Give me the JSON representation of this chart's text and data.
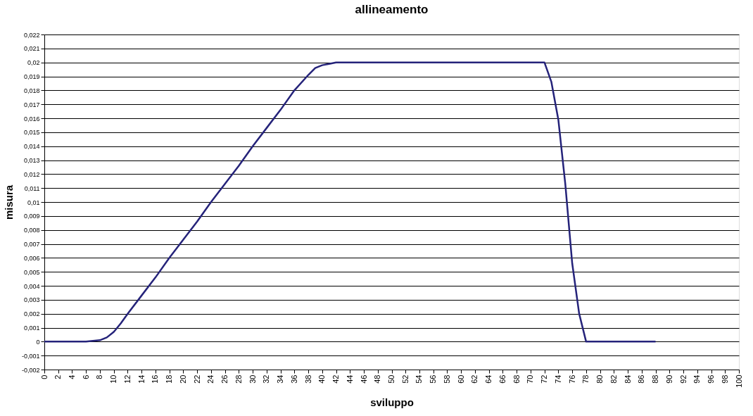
{
  "chart_data": {
    "type": "line",
    "title": "allineamento",
    "xlabel": "sviluppo",
    "ylabel": "misura",
    "x": [
      0,
      2,
      4,
      6,
      8,
      9,
      10,
      11,
      12,
      14,
      16,
      18,
      20,
      22,
      24,
      26,
      28,
      30,
      32,
      34,
      36,
      38,
      39,
      40,
      41,
      42,
      44,
      46,
      48,
      50,
      52,
      54,
      56,
      58,
      60,
      62,
      64,
      66,
      68,
      70,
      72,
      73,
      74,
      75,
      76,
      77,
      78,
      80,
      82,
      84,
      86,
      88
    ],
    "series": [
      {
        "color": "#25237a",
        "values": [
          0,
          0,
          0,
          0,
          0.0001,
          0.0003,
          0.0007,
          0.0013,
          0.002,
          0.0033,
          0.0046,
          0.006,
          0.0073,
          0.0086,
          0.01,
          0.0113,
          0.0126,
          0.014,
          0.0153,
          0.0166,
          0.018,
          0.0191,
          0.0196,
          0.0198,
          0.0199,
          0.02,
          0.02,
          0.02,
          0.02,
          0.02,
          0.02,
          0.02,
          0.02,
          0.02,
          0.02,
          0.02,
          0.02,
          0.02,
          0.02,
          0.02,
          0.02,
          0.0186,
          0.0159,
          0.0113,
          0.0056,
          0.002,
          0,
          0,
          0,
          0,
          0,
          0
        ]
      }
    ],
    "xlim": [
      0,
      100
    ],
    "xticks": [
      0,
      2,
      4,
      6,
      8,
      10,
      12,
      14,
      16,
      18,
      20,
      22,
      24,
      26,
      28,
      30,
      32,
      34,
      36,
      38,
      40,
      42,
      44,
      46,
      48,
      50,
      52,
      54,
      56,
      58,
      60,
      62,
      64,
      66,
      68,
      70,
      72,
      74,
      76,
      78,
      80,
      82,
      84,
      86,
      88,
      90,
      92,
      94,
      96,
      98,
      100
    ],
    "ylim": [
      -0.002,
      0.022
    ],
    "yticks": [
      {
        "value": -0.002,
        "label": "-0,002"
      },
      {
        "value": -0.001,
        "label": "-0,001"
      },
      {
        "value": 0,
        "label": "0"
      },
      {
        "value": 0.001,
        "label": "0,001"
      },
      {
        "value": 0.002,
        "label": "0,002"
      },
      {
        "value": 0.003,
        "label": "0,003"
      },
      {
        "value": 0.004,
        "label": "0,004"
      },
      {
        "value": 0.005,
        "label": "0,005"
      },
      {
        "value": 0.006,
        "label": "0,006"
      },
      {
        "value": 0.007,
        "label": "0,007"
      },
      {
        "value": 0.008,
        "label": "0,008"
      },
      {
        "value": 0.009,
        "label": "0,009"
      },
      {
        "value": 0.01,
        "label": "0,01"
      },
      {
        "value": 0.011,
        "label": "0,011"
      },
      {
        "value": 0.012,
        "label": "0,012"
      },
      {
        "value": 0.013,
        "label": "0,013"
      },
      {
        "value": 0.014,
        "label": "0,014"
      },
      {
        "value": 0.015,
        "label": "0,015"
      },
      {
        "value": 0.016,
        "label": "0,016"
      },
      {
        "value": 0.017,
        "label": "0,017"
      },
      {
        "value": 0.018,
        "label": "0,018"
      },
      {
        "value": 0.019,
        "label": "0,019"
      },
      {
        "value": 0.02,
        "label": "0,02"
      },
      {
        "value": 0.021,
        "label": "0,021"
      },
      {
        "value": 0.022,
        "label": "0,022"
      }
    ],
    "grid": "y",
    "marker": "none",
    "line_style": "solid"
  }
}
